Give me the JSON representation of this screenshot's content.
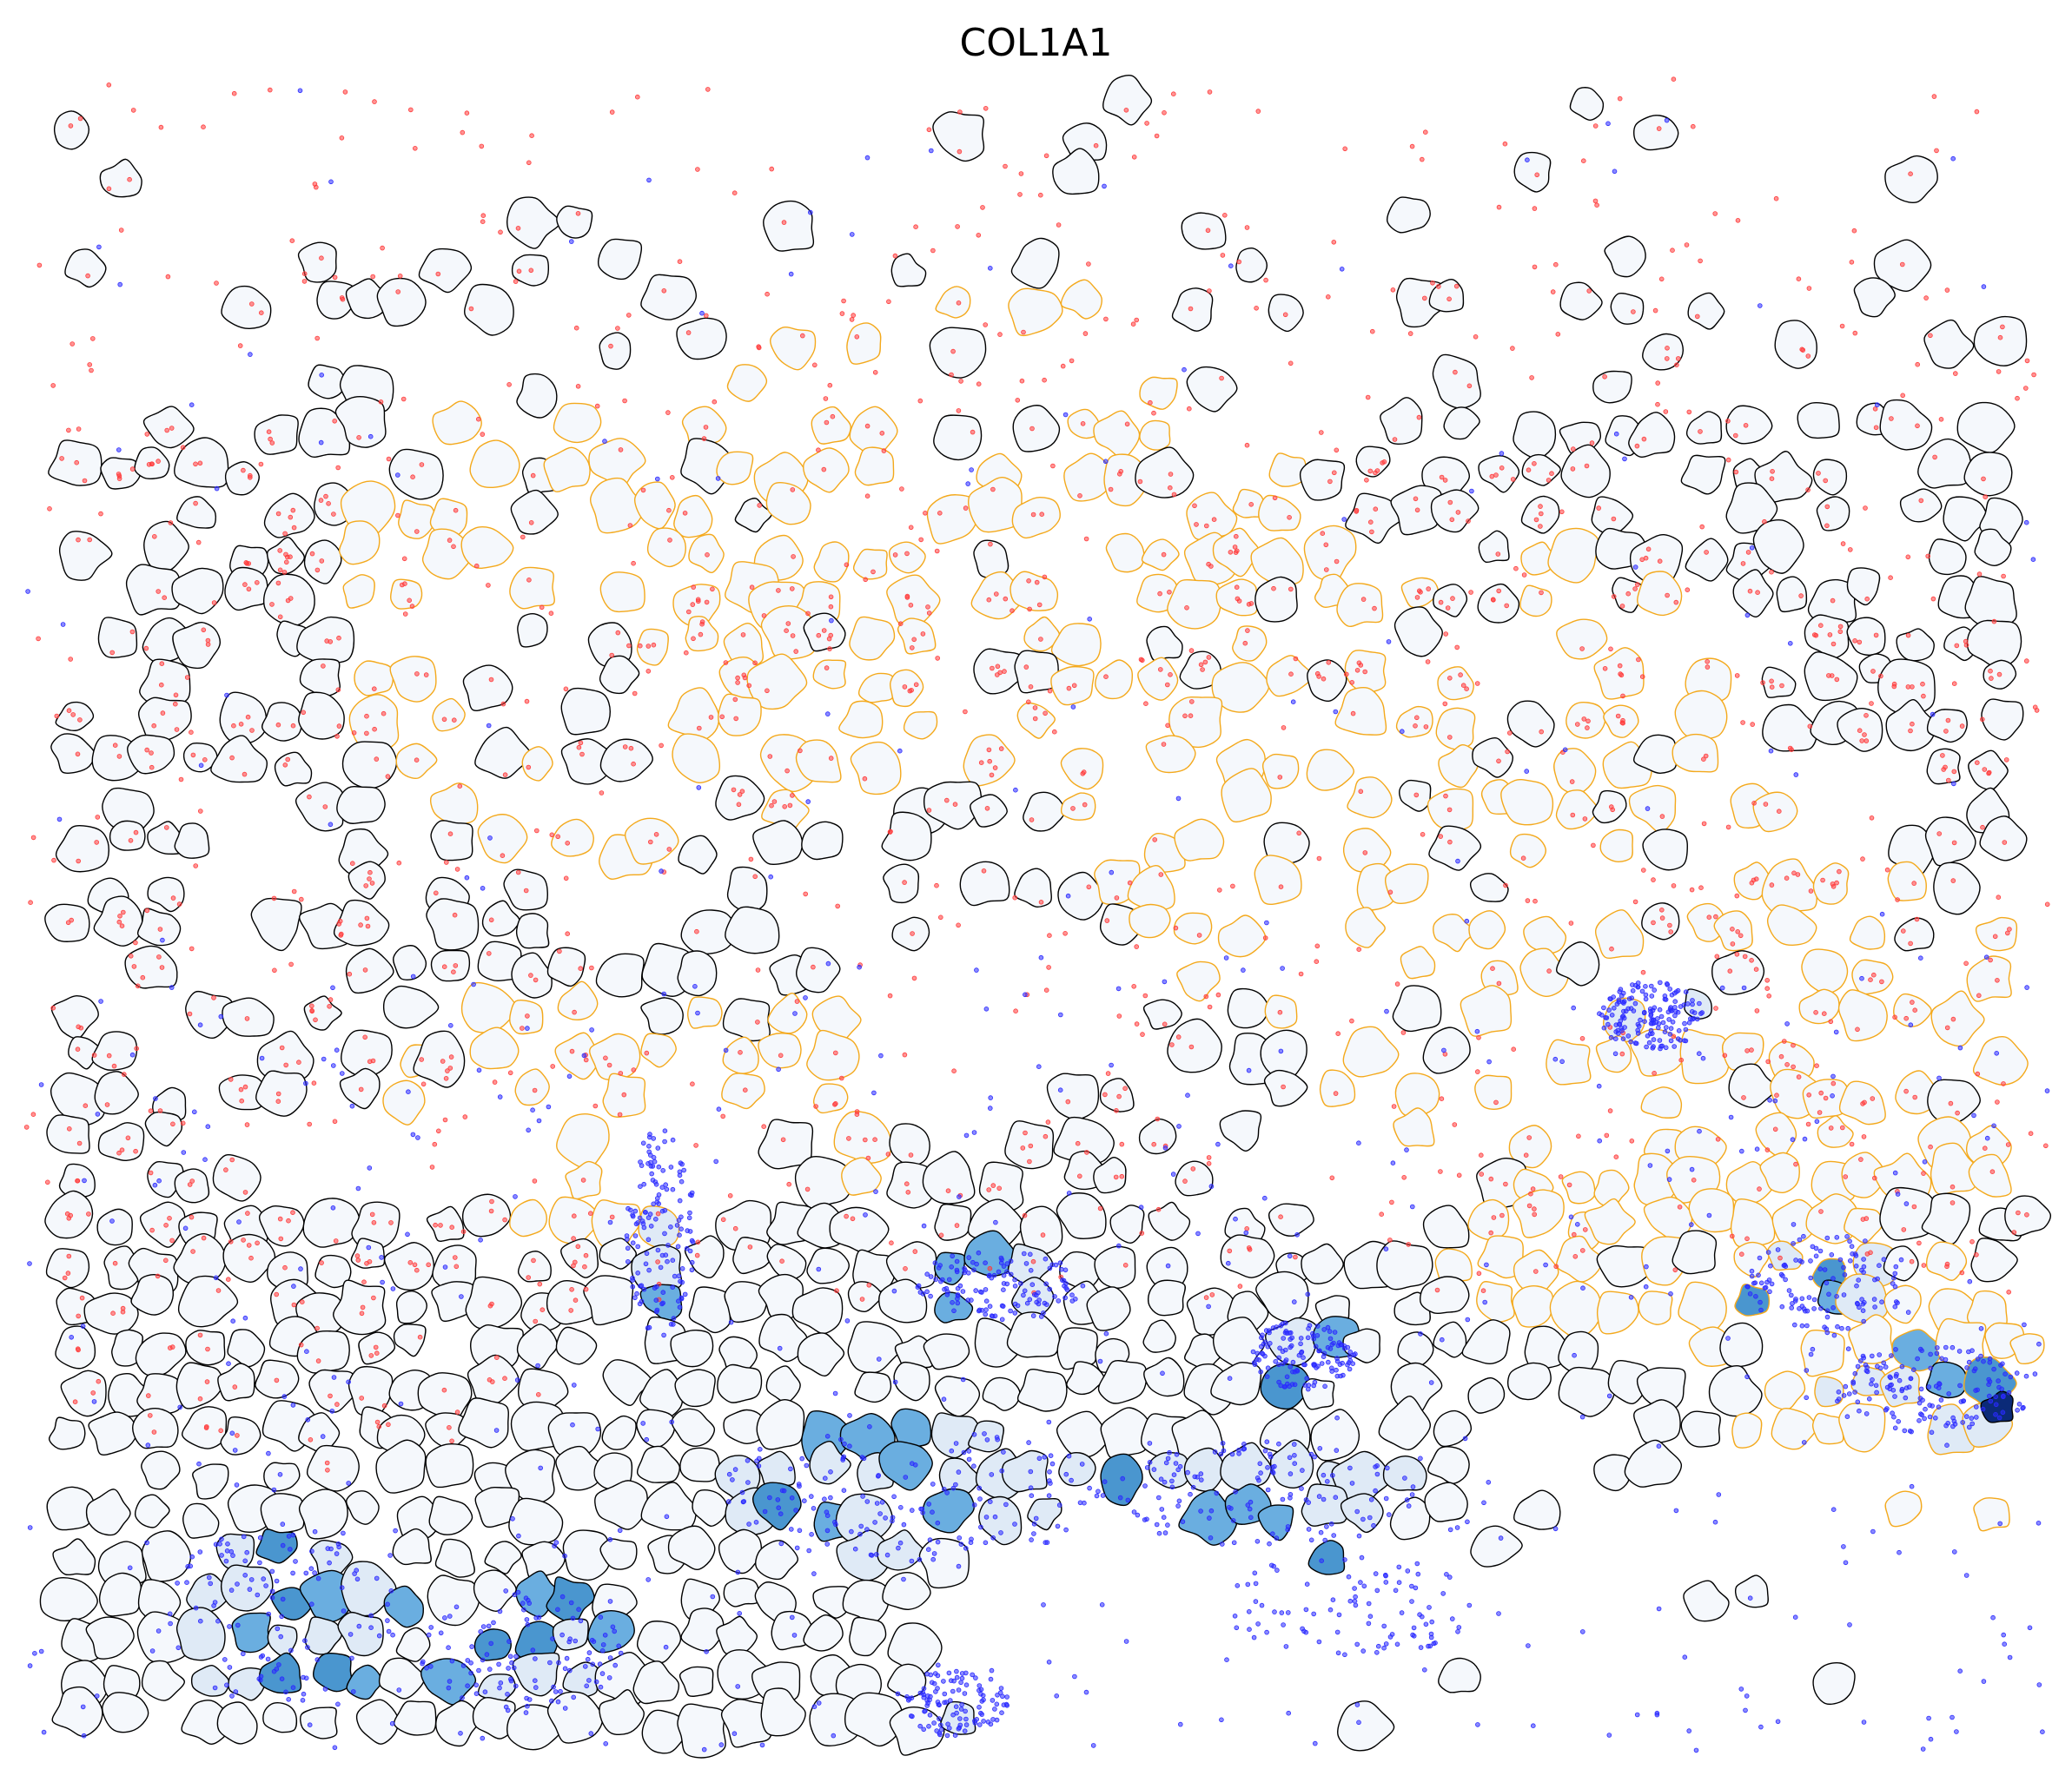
{
  "title": "COL1A1",
  "colors": {
    "background": "#ffffff",
    "cell_fill": "#f5f8fc",
    "cell_outline_default": "#000000",
    "cell_outline_highlight": "#f4a91c",
    "transcript_target": "#ff3b3b",
    "transcript_other": "#2a2aff",
    "expression_low": "#dfeaf6",
    "expression_mid": "#6aaee0",
    "expression_high": "#4a96cf",
    "expression_max": "#0b2a78"
  },
  "legend": {
    "shown": false
  },
  "axes": {
    "shown": false
  }
}
